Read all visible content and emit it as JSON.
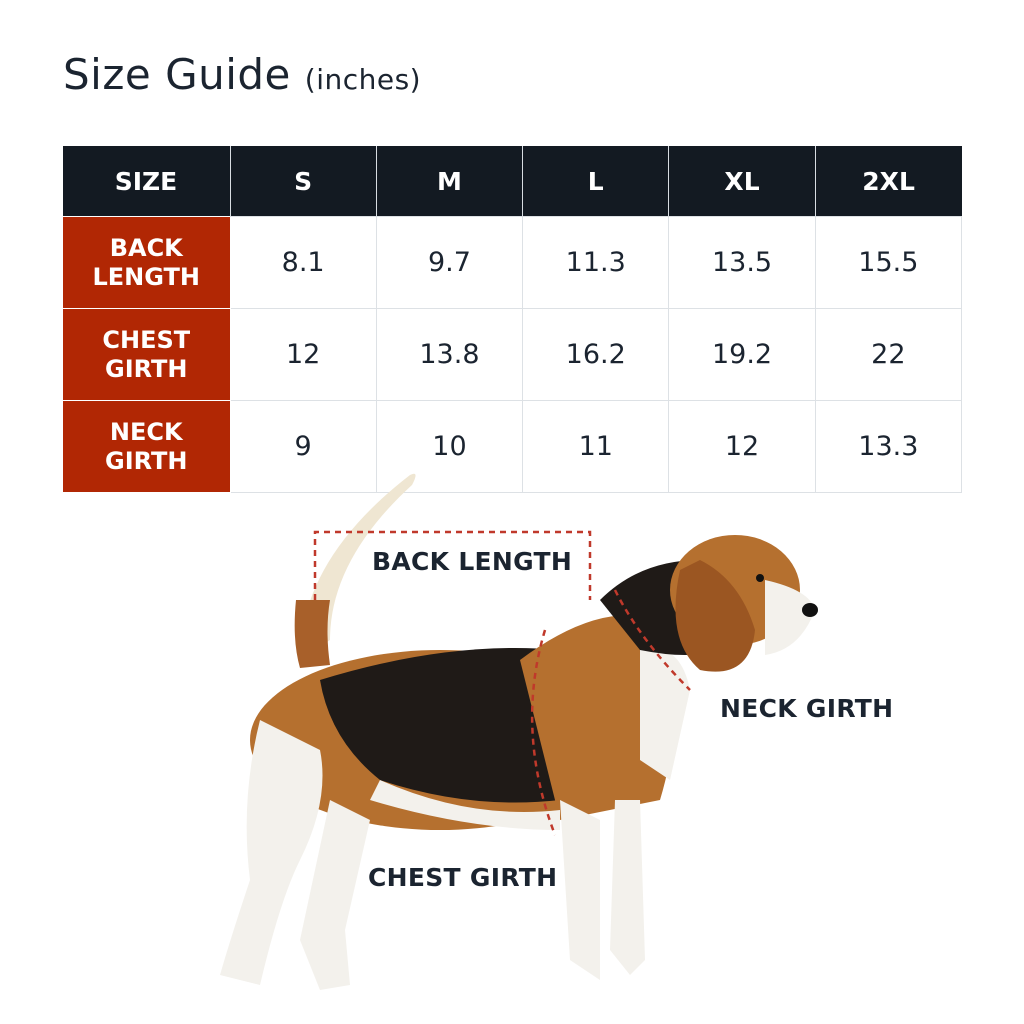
{
  "title": {
    "main": "Size Guide",
    "unit": "(inches)"
  },
  "table": {
    "headers": [
      "SIZE",
      "S",
      "M",
      "L",
      "XL",
      "2XL"
    ],
    "rows": [
      {
        "label_line1": "BACK",
        "label_line2": "LENGTH",
        "values": [
          "8.1",
          "9.7",
          "11.3",
          "13.5",
          "15.5"
        ]
      },
      {
        "label_line1": "CHEST",
        "label_line2": "GIRTH",
        "values": [
          "12",
          "13.8",
          "16.2",
          "19.2",
          "22"
        ]
      },
      {
        "label_line1": "NECK",
        "label_line2": "GIRTH",
        "values": [
          "9",
          "10",
          "11",
          "12",
          "13.3"
        ]
      }
    ]
  },
  "diagram": {
    "labels": {
      "back": "BACK LENGTH",
      "neck": "NECK GIRTH",
      "chest": "CHEST GIRTH"
    },
    "image": "beagle-dog-photo"
  },
  "colors": {
    "header_bg": "#131a22",
    "row_label_bg": "#b12704",
    "measure_line": "#c0392b"
  }
}
